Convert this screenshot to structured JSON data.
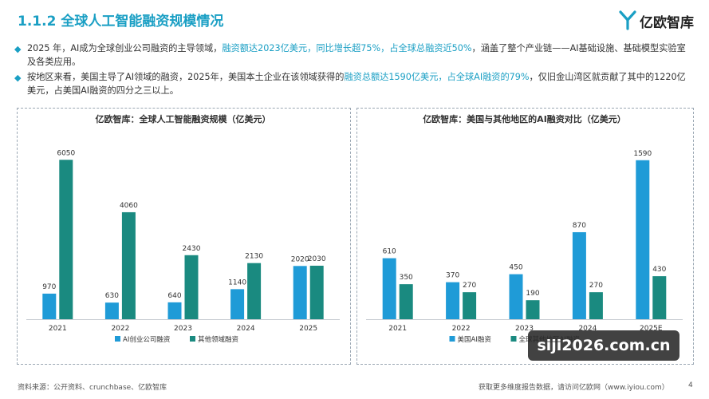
{
  "header": {
    "title": "1.1.2 全球人工智能融资规模情况",
    "logo_text": "亿欧智库"
  },
  "bullets": [
    {
      "parts": [
        {
          "t": "2025 年，AI成为全球创业公司融资的主导领域，",
          "hl": false
        },
        {
          "t": "融资额达2023亿美元，同比增长超75%，占全球总融资近50%",
          "hl": true
        },
        {
          "t": "，涵盖了整个产业链——AI基础设施、基础模型实验室及各类应用。",
          "hl": false
        }
      ]
    },
    {
      "parts": [
        {
          "t": "按地区来看，美国主导了AI领域的融资，2025年，美国本土企业在该领域获得的",
          "hl": false
        },
        {
          "t": "融资总额达1590亿美元，占全球AI融资的79%",
          "hl": true
        },
        {
          "t": "，仅旧金山湾区就贡献了其中的1220亿美元，占美国AI融资的四分之三以上。",
          "hl": false
        }
      ]
    }
  ],
  "colors": {
    "accent": "#1a9fc4",
    "series_a": "#1f9bd7",
    "series_b": "#1a8a80"
  },
  "chart_data": [
    {
      "type": "bar",
      "title": "亿欧智库：全球人工智能融资规模（亿美元）",
      "categories": [
        "2021",
        "2022",
        "2023",
        "2024",
        "2025"
      ],
      "series": [
        {
          "name": "AI创业公司融资",
          "values": [
            970,
            630,
            640,
            1140,
            2020
          ]
        },
        {
          "name": "其他领域融资",
          "values": [
            6050,
            4060,
            2430,
            2130,
            2030
          ]
        }
      ],
      "ylim": [
        0,
        6300
      ],
      "grid": false,
      "legend": "bottom",
      "data_labels": true
    },
    {
      "type": "bar",
      "title": "亿欧智库：美国与其他地区的AI融资对比（亿美元）",
      "categories": [
        "2021",
        "2022",
        "2023",
        "2024",
        "2025E"
      ],
      "series": [
        {
          "name": "美国AI融资",
          "values": [
            610,
            370,
            450,
            870,
            1590
          ]
        },
        {
          "name": "全球其他地区AI融资",
          "values": [
            350,
            270,
            190,
            270,
            430
          ]
        }
      ],
      "ylim": [
        0,
        1660
      ],
      "grid": false,
      "legend": "bottom",
      "data_labels": true
    }
  ],
  "footer": {
    "source": "资料来源：公开资料、crunchbase、亿欧智库",
    "more": "获取更多维度报告数据，请访问亿欧网（www.iyiou.com）",
    "page": "4",
    "watermark": "siji2026.com.cn"
  }
}
